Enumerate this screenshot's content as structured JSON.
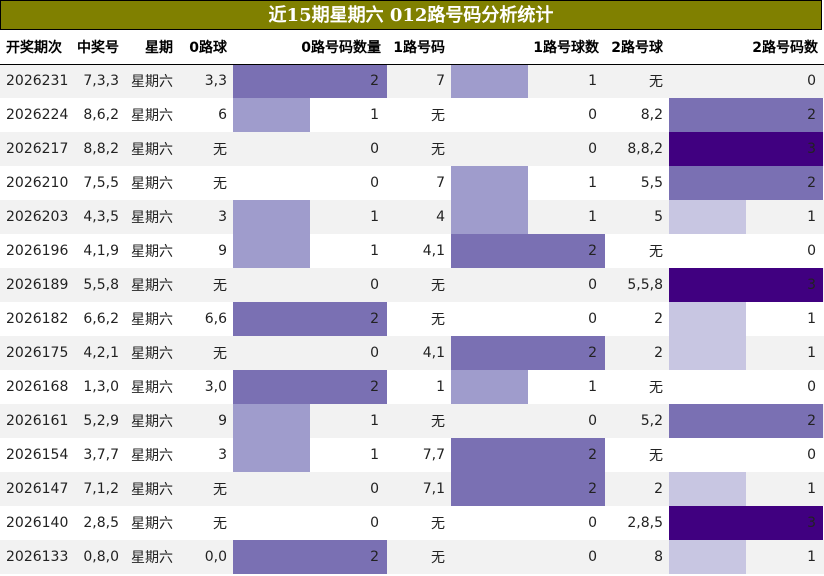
{
  "title": "近15期星期六 012路号码分析统计",
  "headers": [
    "开奖期次",
    "中奖号",
    "星期",
    "0路球",
    "0路号码数量",
    "1路号码",
    "1路号球数",
    "2路号球",
    "2路号码数"
  ],
  "bar_colors": {
    "1": "#9f9ccc",
    "2": "#7a70b3",
    "3": "#400080"
  },
  "bar_colors_light": {
    "1": "#c8c6e2"
  },
  "rows": [
    {
      "period": "2026231",
      "nums": "7,3,3",
      "weekday": "星期六",
      "r0": "3,3",
      "r0_count": 2,
      "r1": "7",
      "r1_count": 1,
      "r2": "无",
      "r2_count": 0
    },
    {
      "period": "2026224",
      "nums": "8,6,2",
      "weekday": "星期六",
      "r0": "6",
      "r0_count": 1,
      "r1": "无",
      "r1_count": 0,
      "r2": "8,2",
      "r2_count": 2
    },
    {
      "period": "2026217",
      "nums": "8,8,2",
      "weekday": "星期六",
      "r0": "无",
      "r0_count": 0,
      "r1": "无",
      "r1_count": 0,
      "r2": "8,8,2",
      "r2_count": 3
    },
    {
      "period": "2026210",
      "nums": "7,5,5",
      "weekday": "星期六",
      "r0": "无",
      "r0_count": 0,
      "r1": "7",
      "r1_count": 1,
      "r2": "5,5",
      "r2_count": 2
    },
    {
      "period": "2026203",
      "nums": "4,3,5",
      "weekday": "星期六",
      "r0": "3",
      "r0_count": 1,
      "r1": "4",
      "r1_count": 1,
      "r2": "5",
      "r2_count": 1
    },
    {
      "period": "2026196",
      "nums": "4,1,9",
      "weekday": "星期六",
      "r0": "9",
      "r0_count": 1,
      "r1": "4,1",
      "r1_count": 2,
      "r2": "无",
      "r2_count": 0
    },
    {
      "period": "2026189",
      "nums": "5,5,8",
      "weekday": "星期六",
      "r0": "无",
      "r0_count": 0,
      "r1": "无",
      "r1_count": 0,
      "r2": "5,5,8",
      "r2_count": 3
    },
    {
      "period": "2026182",
      "nums": "6,6,2",
      "weekday": "星期六",
      "r0": "6,6",
      "r0_count": 2,
      "r1": "无",
      "r1_count": 0,
      "r2": "2",
      "r2_count": 1
    },
    {
      "period": "2026175",
      "nums": "4,2,1",
      "weekday": "星期六",
      "r0": "无",
      "r0_count": 0,
      "r1": "4,1",
      "r1_count": 2,
      "r2": "2",
      "r2_count": 1
    },
    {
      "period": "2026168",
      "nums": "1,3,0",
      "weekday": "星期六",
      "r0": "3,0",
      "r0_count": 2,
      "r1": "1",
      "r1_count": 1,
      "r2": "无",
      "r2_count": 0
    },
    {
      "period": "2026161",
      "nums": "5,2,9",
      "weekday": "星期六",
      "r0": "9",
      "r0_count": 1,
      "r1": "无",
      "r1_count": 0,
      "r2": "5,2",
      "r2_count": 2
    },
    {
      "period": "2026154",
      "nums": "3,7,7",
      "weekday": "星期六",
      "r0": "3",
      "r0_count": 1,
      "r1": "7,7",
      "r1_count": 2,
      "r2": "无",
      "r2_count": 0
    },
    {
      "period": "2026147",
      "nums": "7,1,2",
      "weekday": "星期六",
      "r0": "无",
      "r0_count": 0,
      "r1": "7,1",
      "r1_count": 2,
      "r2": "2",
      "r2_count": 1
    },
    {
      "period": "2026140",
      "nums": "2,8,5",
      "weekday": "星期六",
      "r0": "无",
      "r0_count": 0,
      "r1": "无",
      "r1_count": 0,
      "r2": "2,8,5",
      "r2_count": 3
    },
    {
      "period": "2026133",
      "nums": "0,8,0",
      "weekday": "星期六",
      "r0": "0,0",
      "r0_count": 2,
      "r1": "无",
      "r1_count": 0,
      "r2": "8",
      "r2_count": 1
    }
  ]
}
